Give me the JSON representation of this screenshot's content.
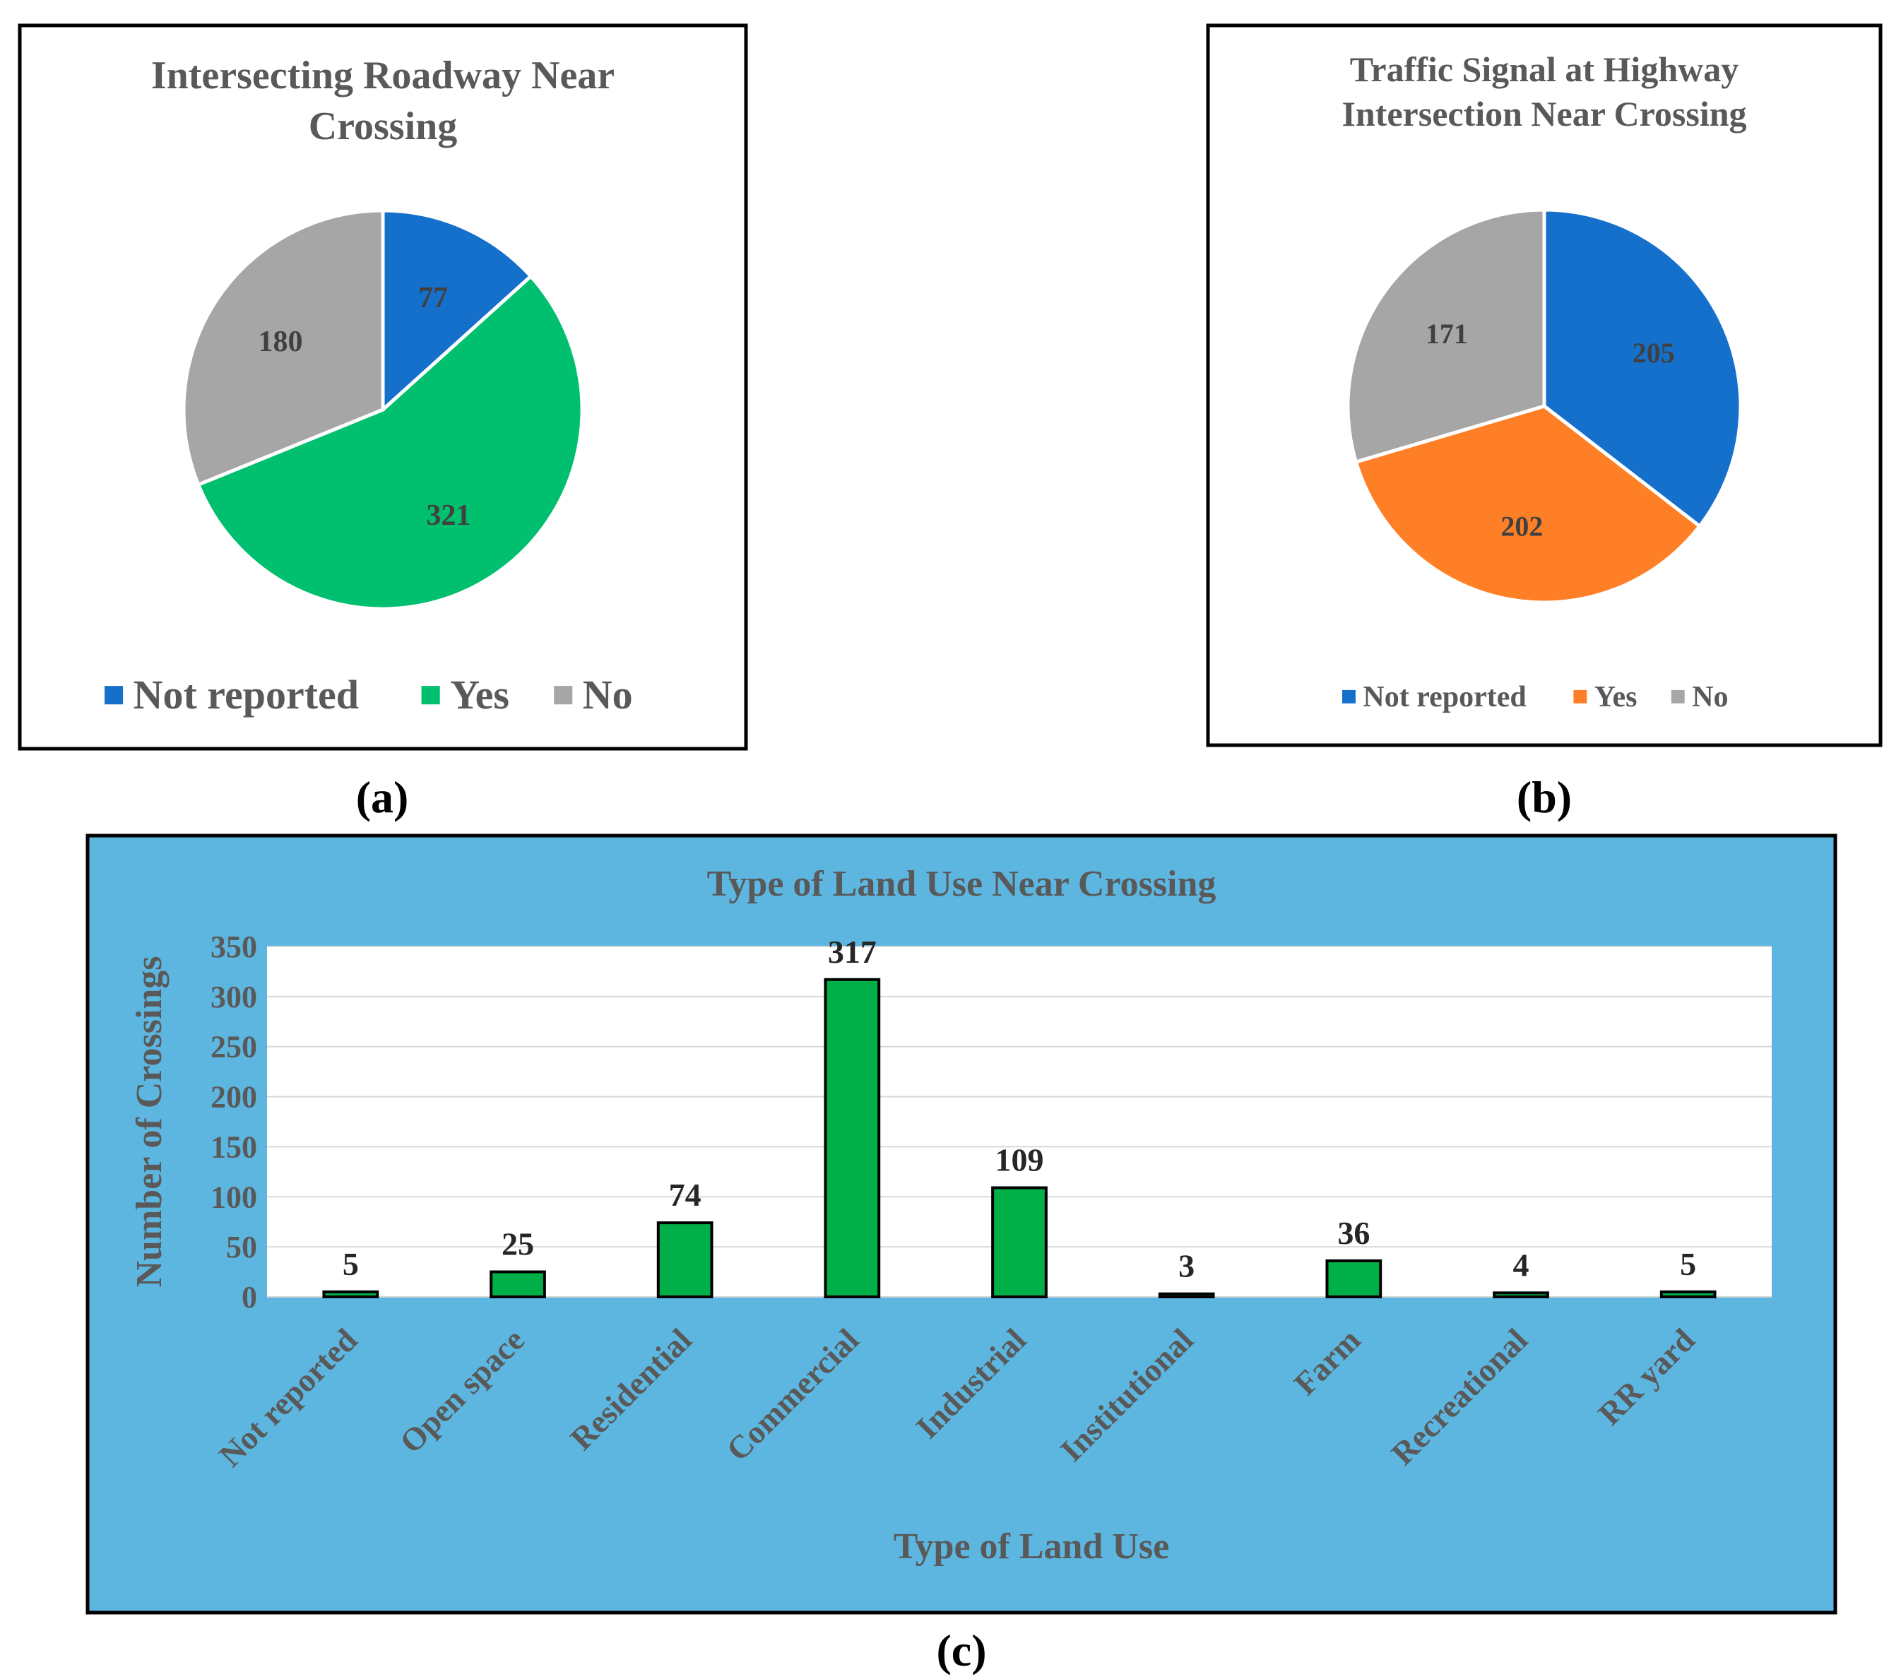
{
  "chart_data": [
    {
      "type": "pie",
      "panel_label": "(a)",
      "title": "Intersecting Roadway Near Crossing",
      "slices": [
        {
          "label": "Not reported",
          "value": 77,
          "color": "#1570CC"
        },
        {
          "label": "Yes",
          "value": 321,
          "color": "#00C06F"
        },
        {
          "label": "No",
          "value": 180,
          "color": "#A6A6A6"
        }
      ],
      "legend": "bottom"
    },
    {
      "type": "pie",
      "panel_label": "(b)",
      "title": "Traffic Signal at Highway Intersection Near Crossing",
      "slices": [
        {
          "label": "Not reported",
          "value": 205,
          "color": "#1570CC"
        },
        {
          "label": "Yes",
          "value": 202,
          "color": "#FF7F27"
        },
        {
          "label": "No",
          "value": 171,
          "color": "#A6A6A6"
        }
      ],
      "legend": "bottom"
    },
    {
      "type": "bar",
      "panel_label": "(c)",
      "title": "Type of Land Use Near Crossing",
      "xlabel": "Type of Land Use",
      "ylabel": "Number of Crossings",
      "categories": [
        "Not reported",
        "Open space",
        "Residential",
        "Commercial",
        "Industrial",
        "Institutional",
        "Farm",
        "Recreational",
        "RR  yard"
      ],
      "values": [
        5,
        25,
        74,
        317,
        109,
        3,
        36,
        4,
        5
      ],
      "ylim": [
        0,
        350
      ],
      "yticks": [
        0,
        50,
        100,
        150,
        200,
        250,
        300,
        350
      ],
      "bar_color": "#00AF48",
      "background_color": "#5DB6E0",
      "grid": true
    }
  ]
}
